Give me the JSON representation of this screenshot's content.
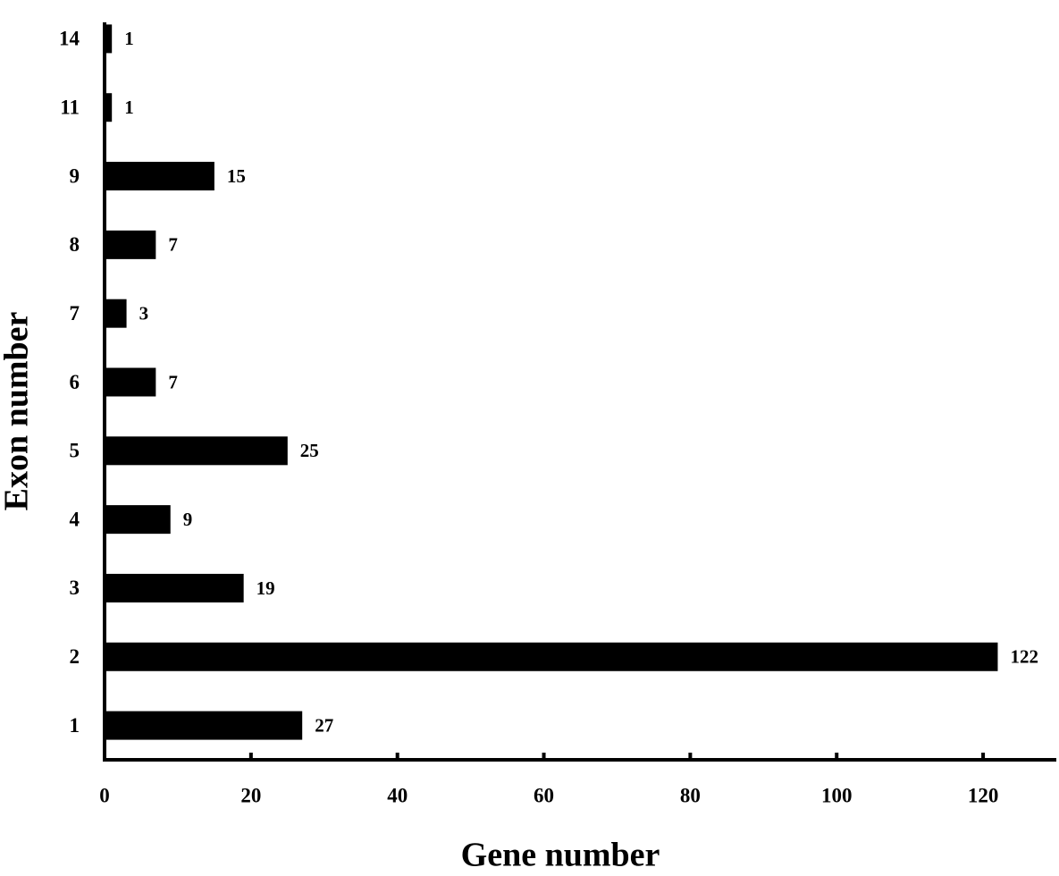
{
  "chart_data": {
    "type": "bar",
    "orientation": "horizontal",
    "x_label": "Gene number",
    "y_label": "Exon number",
    "categories": [
      "1",
      "2",
      "3",
      "4",
      "5",
      "6",
      "7",
      "8",
      "9",
      "11",
      "14"
    ],
    "values": [
      27,
      122,
      19,
      9,
      25,
      7,
      3,
      7,
      15,
      1,
      1
    ],
    "color": "#000000",
    "xlim": [
      0,
      130
    ],
    "xticks": [
      0,
      20,
      40,
      60,
      80,
      100,
      120
    ],
    "grid": false
  }
}
